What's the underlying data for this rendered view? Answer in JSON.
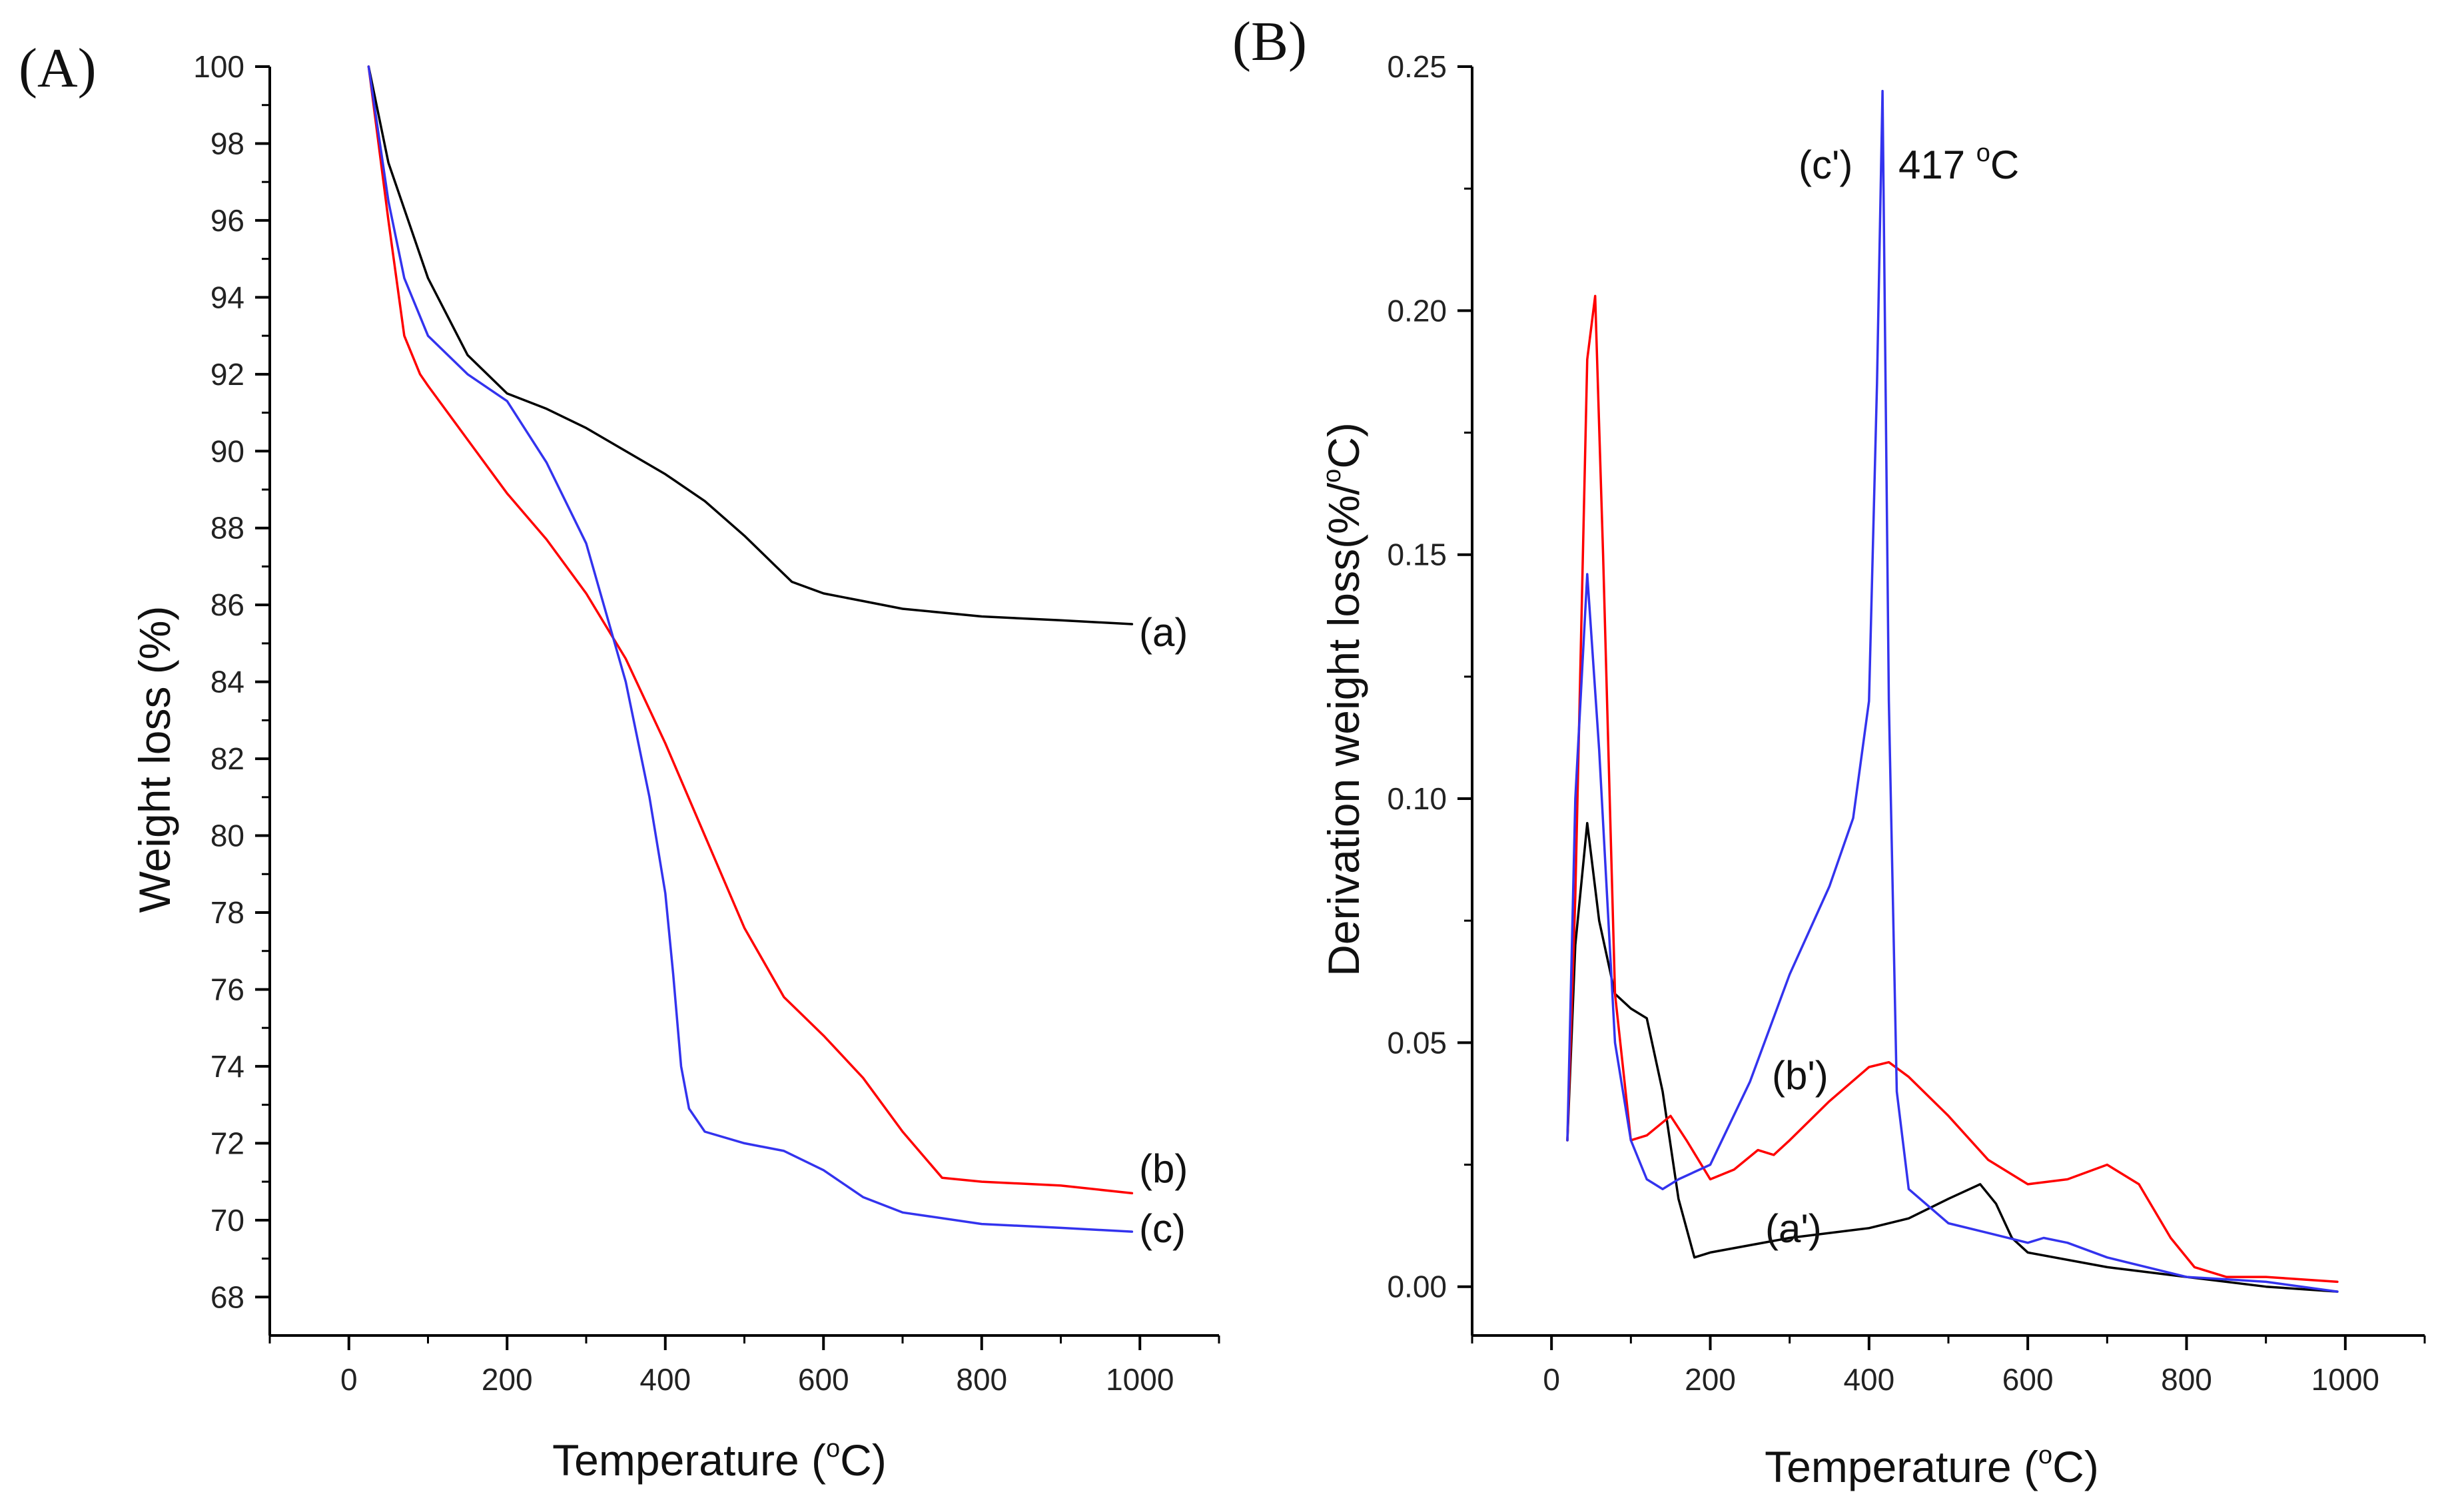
{
  "chart_data": [
    {
      "type": "line",
      "panel": "(A)",
      "xlabel": "Temperature",
      "xunit_sup": "o",
      "xunit_rest": "C)",
      "ylabel": "Weight loss (%)",
      "xlim": [
        -100,
        1100
      ],
      "ylim": [
        67,
        100
      ],
      "xticks": [
        0,
        200,
        400,
        600,
        800,
        1000
      ],
      "yticks": [
        68,
        70,
        72,
        74,
        76,
        78,
        80,
        82,
        84,
        86,
        88,
        90,
        92,
        94,
        96,
        98,
        100
      ],
      "series": [
        {
          "name": "(a)",
          "color": "#000000",
          "x": [
            25,
            50,
            100,
            150,
            200,
            250,
            300,
            350,
            400,
            450,
            500,
            540,
            560,
            600,
            650,
            700,
            800,
            900,
            990
          ],
          "y": [
            100,
            97.5,
            94.5,
            92.5,
            91.5,
            91.1,
            90.6,
            90.0,
            89.4,
            88.7,
            87.8,
            87.0,
            86.6,
            86.3,
            86.1,
            85.9,
            85.7,
            85.6,
            85.5
          ]
        },
        {
          "name": "(b)",
          "color": "#ff0000",
          "x": [
            25,
            50,
            70,
            90,
            100,
            150,
            200,
            250,
            300,
            350,
            400,
            450,
            500,
            550,
            600,
            650,
            700,
            750,
            800,
            900,
            990
          ],
          "y": [
            100,
            96,
            93,
            92,
            91.7,
            90.3,
            88.9,
            87.7,
            86.3,
            84.6,
            82.4,
            80.0,
            77.6,
            75.8,
            74.8,
            73.7,
            72.3,
            71.1,
            71.0,
            70.9,
            70.7
          ]
        },
        {
          "name": "(c)",
          "color": "#3333ee",
          "x": [
            25,
            50,
            70,
            100,
            150,
            200,
            250,
            300,
            350,
            380,
            400,
            410,
            420,
            430,
            450,
            500,
            550,
            600,
            650,
            700,
            800,
            900,
            990
          ],
          "y": [
            100,
            96.5,
            94.5,
            93.0,
            92.0,
            91.3,
            89.7,
            87.6,
            84.0,
            81.0,
            78.5,
            76.4,
            74.0,
            72.9,
            72.3,
            72.0,
            71.8,
            71.3,
            70.6,
            70.2,
            69.9,
            69.8,
            69.7
          ]
        }
      ],
      "labels": [
        "(a)",
        "(b)",
        "(c)"
      ]
    },
    {
      "type": "line",
      "panel": "(B)",
      "xlabel": "Temperature",
      "xunit_sup": "o",
      "xunit_rest": "C)",
      "ylabel": "Derivation weight loss(%/",
      "yunit_sup": "o",
      "yunit_rest": "C)",
      "xlim": [
        -100,
        1100
      ],
      "ylim": [
        -0.01,
        0.25
      ],
      "xticks": [
        0,
        200,
        400,
        600,
        800,
        1000
      ],
      "yticks": [
        0.0,
        0.05,
        0.1,
        0.15,
        0.2,
        0.25
      ],
      "ytick_labels": [
        "0.00",
        "0.05",
        "0.10",
        "0.15",
        "0.20",
        "0.25"
      ],
      "series": [
        {
          "name": "(a')",
          "color": "#000000",
          "x": [
            20,
            30,
            45,
            60,
            80,
            100,
            120,
            140,
            160,
            180,
            200,
            300,
            400,
            450,
            500,
            540,
            560,
            580,
            600,
            700,
            800,
            900,
            990
          ],
          "y": [
            0.03,
            0.07,
            0.095,
            0.075,
            0.06,
            0.057,
            0.055,
            0.04,
            0.018,
            0.006,
            0.007,
            0.01,
            0.012,
            0.014,
            0.018,
            0.021,
            0.017,
            0.01,
            0.007,
            0.004,
            0.002,
            0.0,
            -0.001
          ]
        },
        {
          "name": "(b')",
          "color": "#ff0000",
          "x": [
            20,
            30,
            45,
            55,
            65,
            80,
            100,
            120,
            150,
            170,
            200,
            230,
            260,
            280,
            300,
            350,
            400,
            425,
            450,
            500,
            550,
            600,
            650,
            700,
            740,
            780,
            810,
            850,
            900,
            990
          ],
          "y": [
            0.03,
            0.08,
            0.19,
            0.203,
            0.15,
            0.06,
            0.03,
            0.031,
            0.035,
            0.03,
            0.022,
            0.024,
            0.028,
            0.027,
            0.03,
            0.038,
            0.045,
            0.046,
            0.043,
            0.035,
            0.026,
            0.021,
            0.022,
            0.025,
            0.021,
            0.01,
            0.004,
            0.002,
            0.002,
            0.001
          ]
        },
        {
          "name": "(c')",
          "color": "#3333ee",
          "x": [
            20,
            30,
            45,
            60,
            80,
            100,
            120,
            140,
            160,
            200,
            250,
            300,
            350,
            380,
            400,
            410,
            417,
            425,
            435,
            450,
            500,
            550,
            600,
            620,
            650,
            700,
            800,
            900,
            990
          ],
          "y": [
            0.03,
            0.1,
            0.146,
            0.11,
            0.05,
            0.03,
            0.022,
            0.02,
            0.022,
            0.025,
            0.042,
            0.064,
            0.082,
            0.096,
            0.12,
            0.185,
            0.245,
            0.12,
            0.04,
            0.02,
            0.013,
            0.011,
            0.009,
            0.01,
            0.009,
            0.006,
            0.002,
            0.001,
            -0.001
          ]
        }
      ],
      "labels": [
        "(a')",
        "(b')",
        "(c')"
      ],
      "annotation": "417 °C",
      "annotation_value": "417",
      "annotation_unit_sup": "o",
      "annotation_unit_rest": "C"
    }
  ]
}
